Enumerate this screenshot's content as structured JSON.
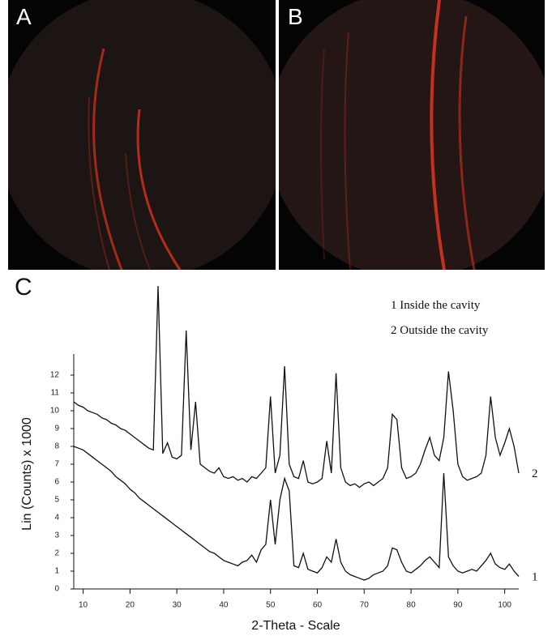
{
  "panels": {
    "a": "A",
    "b": "B",
    "c": "C"
  },
  "chart_data": {
    "type": "line",
    "ylabel": "Lin (Counts) x 1000",
    "xlabel": "2-Theta - Scale",
    "legend": [
      "1 Inside the cavity",
      "2 Outside the cavity"
    ],
    "xlim": [
      8,
      103
    ],
    "ylim": [
      0,
      13
    ],
    "xticks": [
      10,
      20,
      30,
      40,
      50,
      60,
      70,
      80,
      90,
      100
    ],
    "yticks": [
      0,
      1,
      2,
      3,
      4,
      5,
      6,
      7,
      8,
      9,
      10,
      11,
      12
    ],
    "x": [
      8,
      9,
      10,
      11,
      12,
      13,
      14,
      15,
      16,
      17,
      18,
      19,
      20,
      21,
      22,
      23,
      24,
      25,
      26,
      27,
      28,
      29,
      30,
      31,
      32,
      33,
      34,
      35,
      36,
      37,
      38,
      39,
      40,
      41,
      42,
      43,
      44,
      45,
      46,
      47,
      48,
      49,
      50,
      51,
      52,
      53,
      54,
      55,
      56,
      57,
      58,
      59,
      60,
      61,
      62,
      63,
      64,
      65,
      66,
      67,
      68,
      69,
      70,
      71,
      72,
      73,
      74,
      75,
      76,
      77,
      78,
      79,
      80,
      81,
      82,
      83,
      84,
      85,
      86,
      87,
      88,
      89,
      90,
      91,
      92,
      93,
      94,
      95,
      96,
      97,
      98,
      99,
      100,
      101,
      102,
      103
    ],
    "series": [
      {
        "name": "1",
        "color": "#111111",
        "values": [
          8,
          7.9,
          7.8,
          7.6,
          7.4,
          7.2,
          7,
          6.8,
          6.6,
          6.3,
          6.1,
          5.9,
          5.6,
          5.4,
          5.1,
          4.9,
          4.7,
          4.5,
          4.3,
          4.1,
          3.9,
          3.7,
          3.5,
          3.3,
          3.1,
          2.9,
          2.7,
          2.5,
          2.3,
          2.1,
          2,
          1.8,
          1.6,
          1.5,
          1.4,
          1.3,
          1.5,
          1.6,
          1.9,
          1.5,
          2.2,
          2.5,
          5,
          2.5,
          5,
          6.2,
          5.5,
          1.3,
          1.2,
          2,
          1.1,
          1,
          0.9,
          1.2,
          1.8,
          1.5,
          2.8,
          1.5,
          1,
          0.8,
          0.7,
          0.6,
          0.5,
          0.6,
          0.8,
          0.9,
          1,
          1.3,
          2.3,
          2.2,
          1.5,
          1,
          0.9,
          1.1,
          1.3,
          1.6,
          1.8,
          1.5,
          1.2,
          6.5,
          1.8,
          1.3,
          1,
          0.9,
          1,
          1.1,
          1,
          1.3,
          1.6,
          2,
          1.4,
          1.2,
          1.1,
          1.4,
          1,
          0.7
        ]
      },
      {
        "name": "2",
        "color": "#111111",
        "values": [
          10.5,
          10.3,
          10.2,
          10,
          9.9,
          9.8,
          9.6,
          9.5,
          9.3,
          9.2,
          9,
          8.9,
          8.7,
          8.5,
          8.3,
          8.1,
          7.9,
          7.8,
          17,
          7.6,
          8.2,
          7.4,
          7.3,
          7.5,
          14.5,
          7.8,
          10.5,
          7,
          6.8,
          6.6,
          6.5,
          6.8,
          6.3,
          6.2,
          6.3,
          6.1,
          6.2,
          6,
          6.3,
          6.2,
          6.5,
          6.8,
          10.8,
          6.5,
          7.5,
          12.5,
          7,
          6.3,
          6.2,
          7.2,
          6,
          5.9,
          6,
          6.2,
          8.3,
          6.5,
          12.1,
          6.8,
          6,
          5.8,
          5.9,
          5.7,
          5.9,
          6,
          5.8,
          6,
          6.2,
          6.8,
          9.8,
          9.5,
          6.8,
          6.2,
          6.3,
          6.5,
          7,
          7.8,
          8.5,
          7.5,
          7.2,
          8.5,
          12.2,
          10,
          7,
          6.3,
          6.1,
          6.2,
          6.3,
          6.5,
          7.5,
          10.8,
          8.5,
          7.5,
          8.2,
          9,
          8,
          6.5
        ]
      }
    ]
  }
}
